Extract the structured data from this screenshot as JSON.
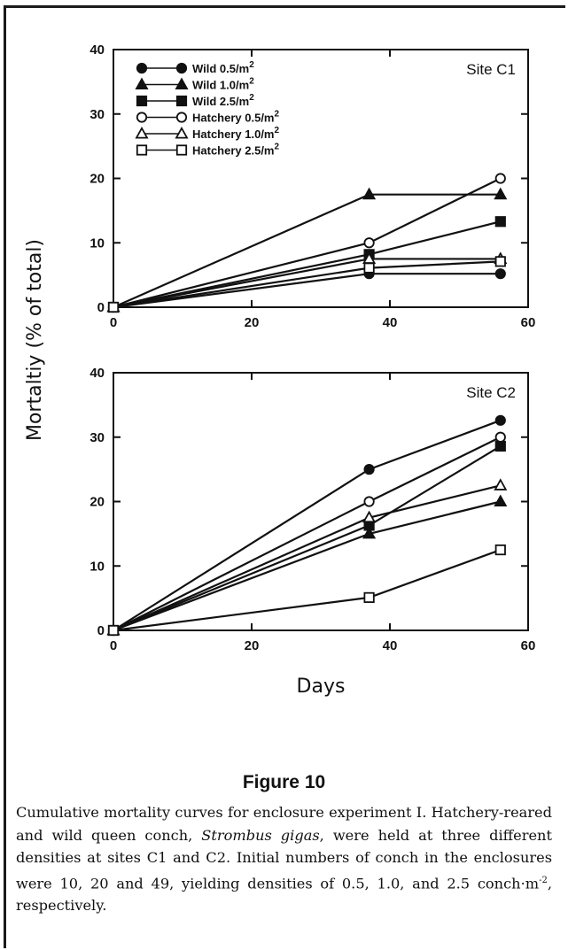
{
  "figure_title": "Figure 10",
  "caption_runs": [
    {
      "text": "Cumulative mortality curves for enclosure experiment I. Hatchery-reared and wild queen conch, ",
      "italic": false
    },
    {
      "text": "Strombus gigas",
      "italic": true
    },
    {
      "text": ", were held at three different densities at sites C1 and C2. Initial numbers of conch in the enclosures were 10, 20 and 49, yielding densities of 0.5, 1.0, and 2.5 conch·m",
      "italic": false
    },
    {
      "text": "-2",
      "sup": true
    },
    {
      "text": ", respectively.",
      "italic": false
    }
  ],
  "chart_data": [
    {
      "type": "line",
      "annotation": "Site C1",
      "ylabel": "Mortaltiy (% of total)",
      "xlabel": "Days",
      "xlim": [
        0,
        60
      ],
      "ylim": [
        0,
        40
      ],
      "xticks": [
        0,
        20,
        40,
        60
      ],
      "yticks": [
        0,
        10,
        20,
        30,
        40
      ],
      "x": [
        0,
        37,
        56
      ],
      "legend_position": "top-left",
      "series": [
        {
          "name": "Wild 0.5/m2",
          "marker": "circle",
          "filled": true,
          "values": [
            0,
            5.2,
            5.2
          ]
        },
        {
          "name": "Wild 1.0/m2",
          "marker": "triangle",
          "filled": true,
          "values": [
            0,
            17.5,
            17.5
          ]
        },
        {
          "name": "Wild 2.5/m2",
          "marker": "square",
          "filled": true,
          "values": [
            0,
            8.2,
            13.3
          ]
        },
        {
          "name": "Hatchery 0.5/m2",
          "marker": "circle",
          "filled": false,
          "values": [
            0,
            10,
            20
          ]
        },
        {
          "name": "Hatchery 1.0/m2",
          "marker": "triangle",
          "filled": false,
          "values": [
            0,
            7.5,
            7.5
          ]
        },
        {
          "name": "Hatchery 2.5/m2",
          "marker": "square",
          "filled": false,
          "values": [
            0,
            6.1,
            7.1
          ]
        }
      ]
    },
    {
      "type": "line",
      "annotation": "Site C2",
      "ylabel": "Mortaltiy (% of total)",
      "xlabel": "Days",
      "xlim": [
        0,
        60
      ],
      "ylim": [
        0,
        40
      ],
      "xticks": [
        0,
        20,
        40,
        60
      ],
      "yticks": [
        0,
        10,
        20,
        30,
        40
      ],
      "x": [
        0,
        37,
        56
      ],
      "series": [
        {
          "name": "Wild 0.5/m2",
          "marker": "circle",
          "filled": true,
          "values": [
            0,
            25,
            32.6
          ]
        },
        {
          "name": "Wild 1.0/m2",
          "marker": "triangle",
          "filled": true,
          "values": [
            0,
            15,
            20
          ]
        },
        {
          "name": "Wild 2.5/m2",
          "marker": "square",
          "filled": true,
          "values": [
            0,
            16.3,
            28.6
          ]
        },
        {
          "name": "Hatchery 0.5/m2",
          "marker": "circle",
          "filled": false,
          "values": [
            0,
            20,
            30
          ]
        },
        {
          "name": "Hatchery 1.0/m2",
          "marker": "triangle",
          "filled": false,
          "values": [
            0,
            17.5,
            22.5
          ]
        },
        {
          "name": "Hatchery 2.5/m2",
          "marker": "square",
          "filled": false,
          "values": [
            0,
            5.1,
            12.5
          ]
        }
      ]
    }
  ]
}
